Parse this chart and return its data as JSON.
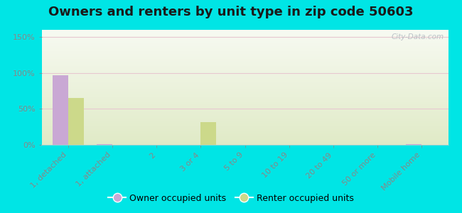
{
  "title": "Owners and renters by unit type in zip code 50603",
  "categories": [
    "1, detached",
    "1, attached",
    "2",
    "3 or 4",
    "5 to 9",
    "10 to 19",
    "20 to 49",
    "50 or more",
    "Mobile home"
  ],
  "owner_values": [
    97,
    1,
    0,
    0,
    0,
    0,
    0,
    0,
    1
  ],
  "renter_values": [
    65,
    0,
    0,
    32,
    0,
    0,
    0,
    0,
    0
  ],
  "owner_color": "#c9a8d4",
  "renter_color": "#ccd98a",
  "background_color": "#00e5e5",
  "yticks": [
    0,
    50,
    100,
    150
  ],
  "ylim": [
    0,
    160
  ],
  "bar_width": 0.35,
  "title_fontsize": 13,
  "legend_fontsize": 9,
  "tick_fontsize": 8,
  "watermark": "City-Data.com"
}
